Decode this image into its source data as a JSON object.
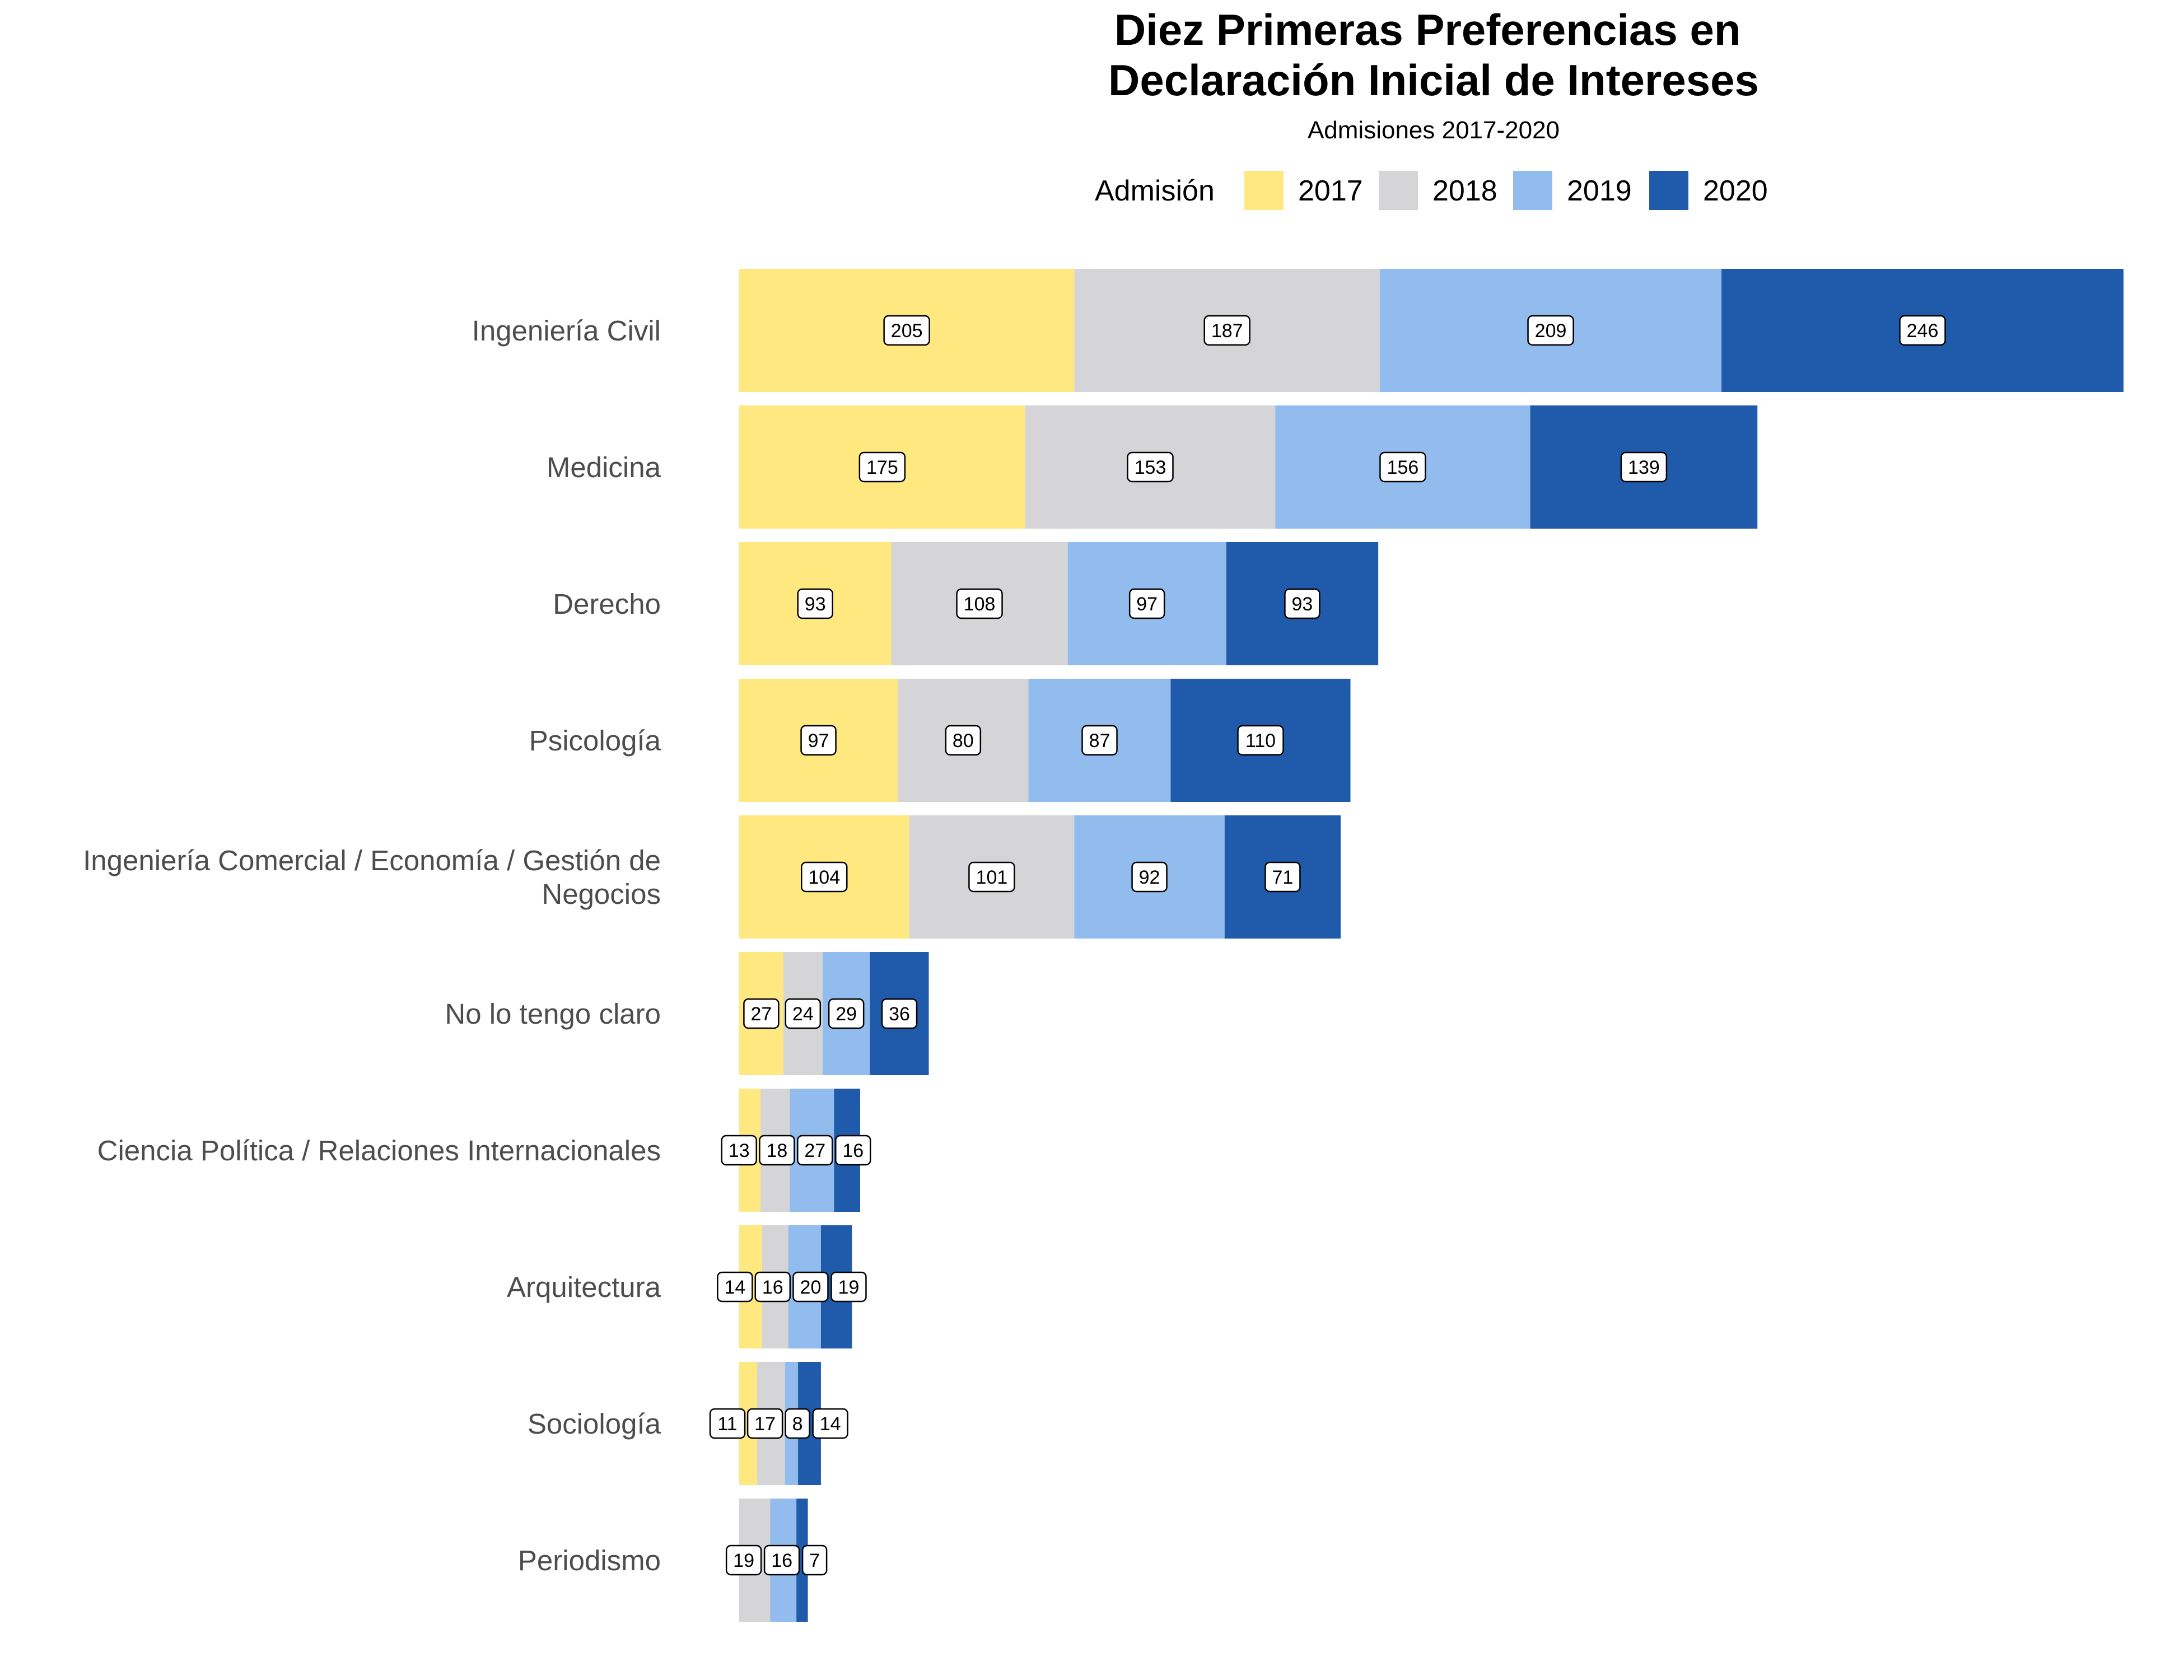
{
  "chart_data": {
    "type": "bar",
    "orientation": "horizontal",
    "stacked": true,
    "title": "Diez Primeras Preferencias en\nDeclaración Inicial de Intereses",
    "title_lines": [
      "Diez Primeras Preferencias en",
      "Declaración Inicial de Intereses"
    ],
    "subtitle": "Admisiones 2017-2020",
    "legend_title": "Admisión",
    "legend_position": "top",
    "xlabel": "",
    "ylabel": "",
    "grid": false,
    "categories": [
      "Ingeniería Civil",
      "Medicina",
      "Derecho",
      "Psicología",
      "Ingeniería Comercial / Economía / Gestión de Negocios",
      "No lo tengo claro",
      "Ciencia Política / Relaciones Internacionales",
      "Arquitectura",
      "Sociología",
      "Periodismo"
    ],
    "category_label_lines": [
      [
        "Ingeniería Civil"
      ],
      [
        "Medicina"
      ],
      [
        "Derecho"
      ],
      [
        "Psicología"
      ],
      [
        "Ingeniería Comercial / Economía / Gestión de",
        "Negocios"
      ],
      [
        "No lo tengo claro"
      ],
      [
        "Ciencia Política / Relaciones Internacionales"
      ],
      [
        "Arquitectura"
      ],
      [
        "Sociología"
      ],
      [
        "Periodismo"
      ]
    ],
    "series": [
      {
        "name": "2017",
        "color": "#FFE880",
        "values": [
          205,
          175,
          93,
          97,
          104,
          27,
          13,
          14,
          11,
          null
        ]
      },
      {
        "name": "2018",
        "color": "#D5D5D7",
        "values": [
          187,
          153,
          108,
          80,
          101,
          24,
          18,
          16,
          17,
          19
        ]
      },
      {
        "name": "2019",
        "color": "#92BBEE",
        "values": [
          209,
          156,
          97,
          87,
          92,
          29,
          27,
          20,
          8,
          16
        ]
      },
      {
        "name": "2020",
        "color": "#1F5BAA",
        "values": [
          246,
          139,
          93,
          110,
          71,
          36,
          16,
          19,
          14,
          7
        ]
      }
    ],
    "xlim": [
      0,
      847
    ]
  }
}
